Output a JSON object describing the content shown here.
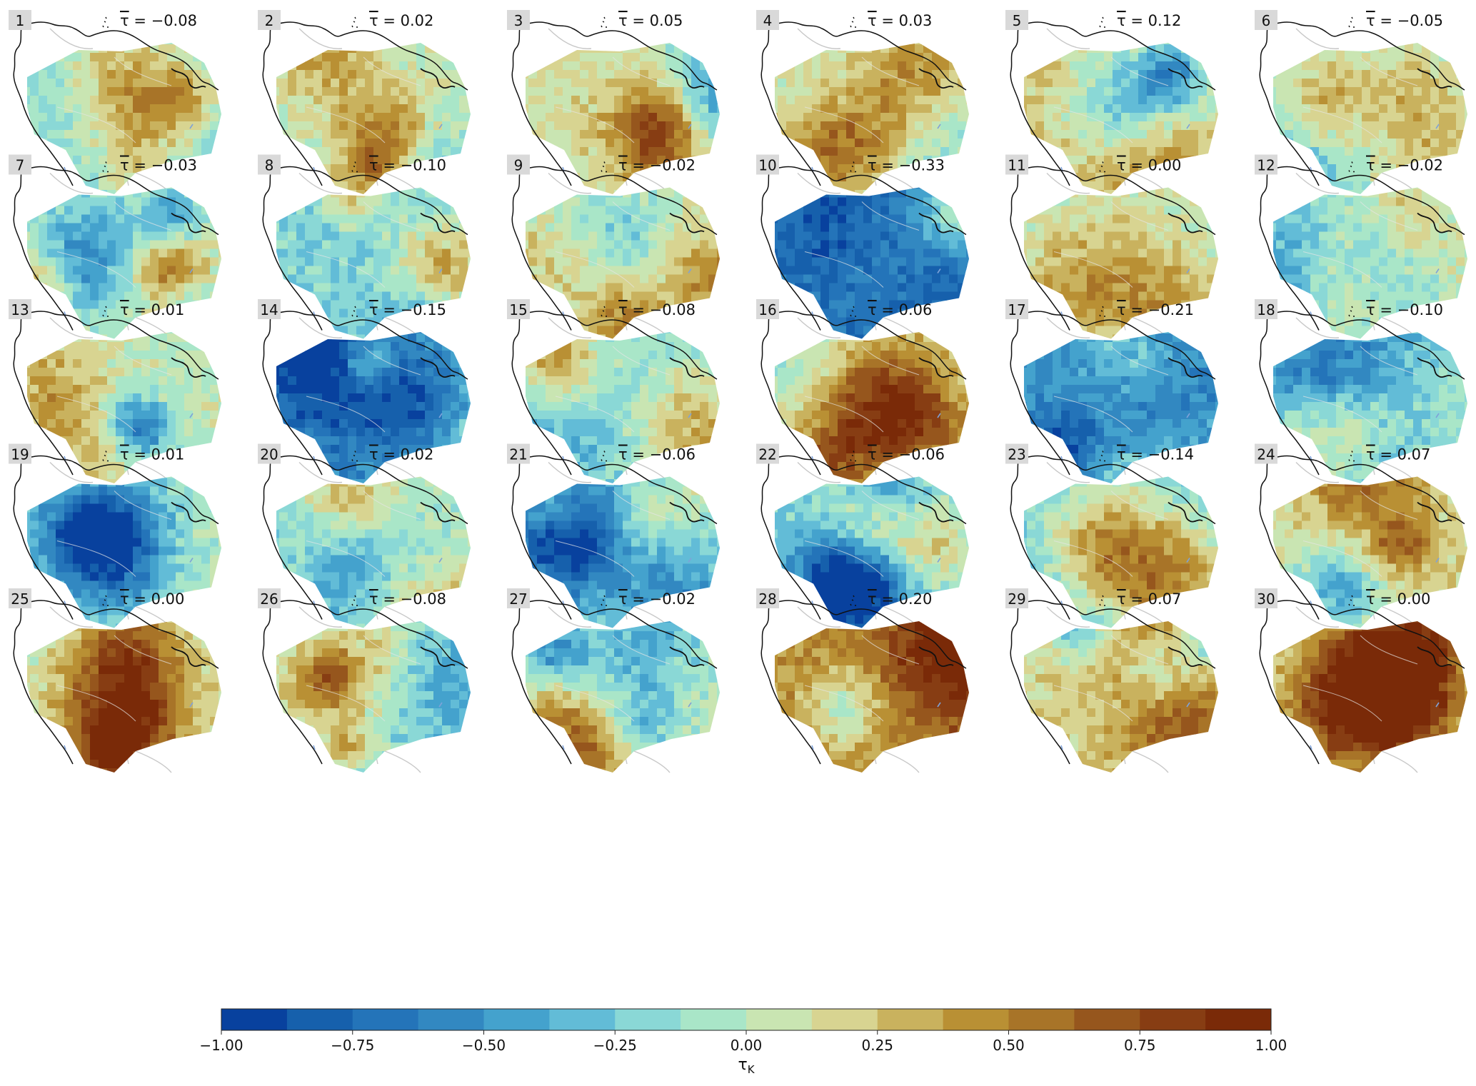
{
  "chart_data": {
    "type": "heatmap",
    "panels": [
      {
        "label": "1",
        "tau_mean": "−0.08",
        "value": -0.08
      },
      {
        "label": "2",
        "tau_mean": "0.02",
        "value": 0.02
      },
      {
        "label": "3",
        "tau_mean": "0.05",
        "value": 0.05
      },
      {
        "label": "4",
        "tau_mean": "0.03",
        "value": 0.03
      },
      {
        "label": "5",
        "tau_mean": "0.12",
        "value": 0.12
      },
      {
        "label": "6",
        "tau_mean": "−0.05",
        "value": -0.05
      },
      {
        "label": "7",
        "tau_mean": "−0.03",
        "value": -0.03
      },
      {
        "label": "8",
        "tau_mean": "−0.10",
        "value": -0.1
      },
      {
        "label": "9",
        "tau_mean": "−0.02",
        "value": -0.02
      },
      {
        "label": "10",
        "tau_mean": "−0.33",
        "value": -0.33
      },
      {
        "label": "11",
        "tau_mean": "0.00",
        "value": 0.0
      },
      {
        "label": "12",
        "tau_mean": "−0.02",
        "value": -0.02
      },
      {
        "label": "13",
        "tau_mean": "0.01",
        "value": 0.01
      },
      {
        "label": "14",
        "tau_mean": "−0.15",
        "value": -0.15
      },
      {
        "label": "15",
        "tau_mean": "−0.08",
        "value": -0.08
      },
      {
        "label": "16",
        "tau_mean": "0.06",
        "value": 0.06
      },
      {
        "label": "17",
        "tau_mean": "−0.21",
        "value": -0.21
      },
      {
        "label": "18",
        "tau_mean": "−0.10",
        "value": -0.1
      },
      {
        "label": "19",
        "tau_mean": "0.01",
        "value": 0.01
      },
      {
        "label": "20",
        "tau_mean": "0.02",
        "value": 0.02
      },
      {
        "label": "21",
        "tau_mean": "−0.06",
        "value": -0.06
      },
      {
        "label": "22",
        "tau_mean": "−0.06",
        "value": -0.06
      },
      {
        "label": "23",
        "tau_mean": "−0.14",
        "value": -0.14
      },
      {
        "label": "24",
        "tau_mean": "0.07",
        "value": 0.07
      },
      {
        "label": "25",
        "tau_mean": "0.00",
        "value": 0.0
      },
      {
        "label": "26",
        "tau_mean": "−0.08",
        "value": -0.08
      },
      {
        "label": "27",
        "tau_mean": "−0.02",
        "value": -0.02
      },
      {
        "label": "28",
        "tau_mean": "0.20",
        "value": 0.2
      },
      {
        "label": "29",
        "tau_mean": "0.07",
        "value": 0.07
      },
      {
        "label": "30",
        "tau_mean": "0.00",
        "value": 0.0
      }
    ],
    "colorbar": {
      "label": "τ",
      "label_sub": "K",
      "range": [
        -1,
        1
      ],
      "ticks": [
        "−1.00",
        "−0.75",
        "−0.50",
        "−0.25",
        "0.00",
        "0.25",
        "0.50",
        "0.75",
        "1.00"
      ],
      "colors": [
        "#08419e",
        "#1660ac",
        "#2474b9",
        "#3288c1",
        "#44a2cd",
        "#62bcd7",
        "#8ad8d6",
        "#a9e6c8",
        "#c9e5b2",
        "#d8d491",
        "#c9b25e",
        "#b99034",
        "#a87428",
        "#96561d",
        "#873d13",
        "#7a2a08"
      ]
    }
  }
}
